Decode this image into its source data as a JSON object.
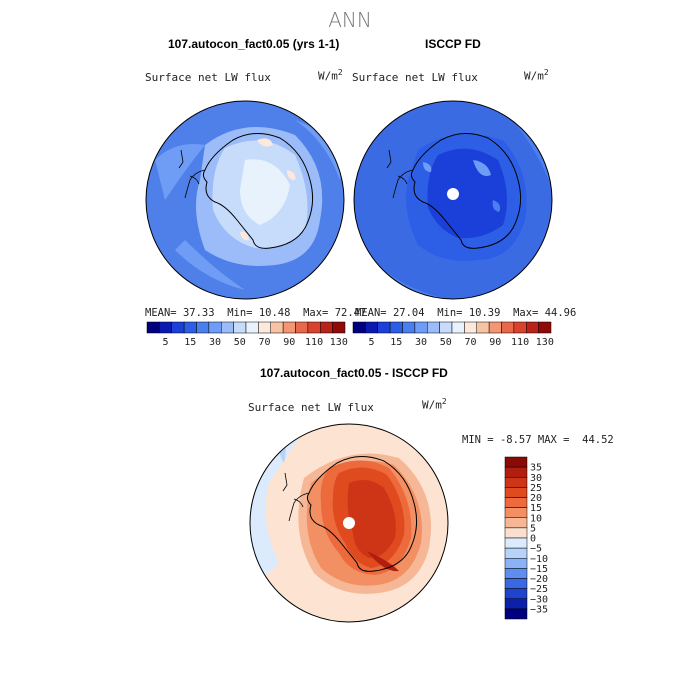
{
  "figure_title": "ANN",
  "panels": {
    "left": {
      "title": "107.autocon_fact0.05 (yrs 1-1)",
      "variable": "Surface net LW flux",
      "units": "W/m",
      "units_exp": "2",
      "stats": {
        "mean_label": "MEAN=",
        "mean": "37.33",
        "min_label": "Min=",
        "min": "10.48",
        "max_label": "Max=",
        "max": "72.47"
      }
    },
    "right": {
      "title": "ISCCP FD",
      "variable": "Surface net LW flux",
      "units": "W/m",
      "units_exp": "2",
      "stats": {
        "mean_label": "MEAN=",
        "mean": "27.04",
        "min_label": "Min=",
        "min": "10.39",
        "max_label": "Max=",
        "max": "44.96"
      }
    },
    "diff": {
      "title": "107.autocon_fact0.05 - ISCCP FD",
      "variable": "Surface net LW flux",
      "units": "W/m",
      "units_exp": "2",
      "stats": {
        "min_label": "MIN =",
        "min": "-8.57",
        "max_label": "MAX =",
        "max": "44.52"
      }
    }
  },
  "colorbar_top": {
    "labels": [
      "5",
      "15",
      "30",
      "50",
      "70",
      "90",
      "110",
      "130"
    ],
    "colors": [
      "#00007f",
      "#0a1ab0",
      "#1b3fd9",
      "#2d5fe6",
      "#4a7ff0",
      "#6f9cf5",
      "#9bbcf8",
      "#c7dcfb",
      "#e8f2fd",
      "#fde8dc",
      "#f8c2a5",
      "#f29674",
      "#e8694a",
      "#d9432d",
      "#b8241a",
      "#8f0a08"
    ]
  },
  "colorbar_diff": {
    "labels": [
      "35",
      "30",
      "25",
      "20",
      "15",
      "10",
      "5",
      "0",
      "−5",
      "−10",
      "−15",
      "−20",
      "−25",
      "−30",
      "−35"
    ],
    "colors": [
      "#8c0a06",
      "#b01e0e",
      "#cd3516",
      "#e04a1f",
      "#ec6a3c",
      "#f28f63",
      "#f6b796",
      "#fbe0cf",
      "#dbeafc",
      "#b7d3fa",
      "#8ab3f5",
      "#5f8def",
      "#3a67e4",
      "#1f42cf",
      "#0b20ab",
      "#00007f"
    ]
  },
  "colors": {
    "ocean_left": "#4f7fe8",
    "ocean_right": "#3b6be3",
    "ocean_diff": "#fde3d2",
    "coast": "#000000"
  }
}
